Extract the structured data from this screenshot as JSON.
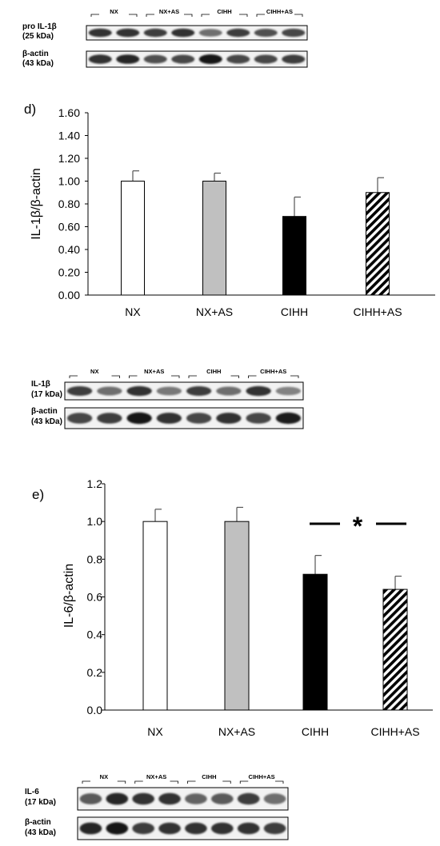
{
  "blots": [
    {
      "groups": [
        "NX",
        "NX+AS",
        "CIHH",
        "CIHH+AS"
      ],
      "rows": [
        {
          "name": "pro IL-1β",
          "kda": "(25 kDa)",
          "intensity": [
            0.85,
            0.85,
            0.8,
            0.85,
            0.55,
            0.8,
            0.7,
            0.75
          ]
        },
        {
          "name": "β-actin",
          "kda": "(43 kDa)",
          "intensity": [
            0.85,
            0.9,
            0.7,
            0.75,
            1.0,
            0.75,
            0.75,
            0.8
          ]
        }
      ]
    },
    {
      "groups": [
        "NX",
        "NX+AS",
        "CIHH",
        "CIHH+AS"
      ],
      "rows": [
        {
          "name": "IL-1β",
          "kda": "(17 kDa)",
          "intensity": [
            0.8,
            0.55,
            0.85,
            0.5,
            0.8,
            0.55,
            0.85,
            0.45
          ]
        },
        {
          "name": "β-actin",
          "kda": "(43 kDa)",
          "intensity": [
            0.75,
            0.8,
            1.0,
            0.85,
            0.75,
            0.85,
            0.75,
            0.95
          ]
        }
      ]
    },
    {
      "groups": [
        "NX",
        "NX+AS",
        "CIHH",
        "CIHH+AS"
      ],
      "rows": [
        {
          "name": "IL-6",
          "kda": "(17 kDa)",
          "intensity": [
            0.65,
            0.9,
            0.85,
            0.85,
            0.6,
            0.65,
            0.8,
            0.55
          ]
        },
        {
          "name": "β-actin",
          "kda": "(43 kDa)",
          "intensity": [
            0.9,
            1.0,
            0.8,
            0.85,
            0.85,
            0.85,
            0.85,
            0.8
          ]
        }
      ]
    }
  ],
  "chart_data": [
    {
      "type": "bar",
      "panel": "d)",
      "title": "",
      "xlabel": "",
      "ylabel": "IL-1β/β-actin",
      "categories": [
        "NX",
        "NX+AS",
        "CIHH",
        "CIHH+AS"
      ],
      "values": [
        1.0,
        1.0,
        0.69,
        0.9
      ],
      "errors": [
        0.09,
        0.07,
        0.17,
        0.13
      ],
      "fills": [
        "white",
        "#c0c0c0",
        "#000000",
        "hatch"
      ],
      "ylim": [
        0,
        1.6
      ],
      "yticks": [
        "0.00",
        "0.20",
        "0.40",
        "0.60",
        "0.80",
        "1.00",
        "1.20",
        "1.40",
        "1.60"
      ],
      "grid": false,
      "significance": ""
    },
    {
      "type": "bar",
      "panel": "e)",
      "title": "",
      "xlabel": "",
      "ylabel": "IL-6/β-actin",
      "categories": [
        "NX",
        "NX+AS",
        "CIHH",
        "CIHH+AS"
      ],
      "values": [
        1.0,
        1.0,
        0.72,
        0.64
      ],
      "errors": [
        0.065,
        0.075,
        0.1,
        0.07
      ],
      "fills": [
        "white",
        "#c0c0c0",
        "#000000",
        "hatch"
      ],
      "ylim": [
        0,
        1.2
      ],
      "yticks": [
        "0.0",
        "0.2",
        "0.4",
        "0.6",
        "0.8",
        "1.0",
        "1.2"
      ],
      "grid": false,
      "significance": "*"
    }
  ]
}
